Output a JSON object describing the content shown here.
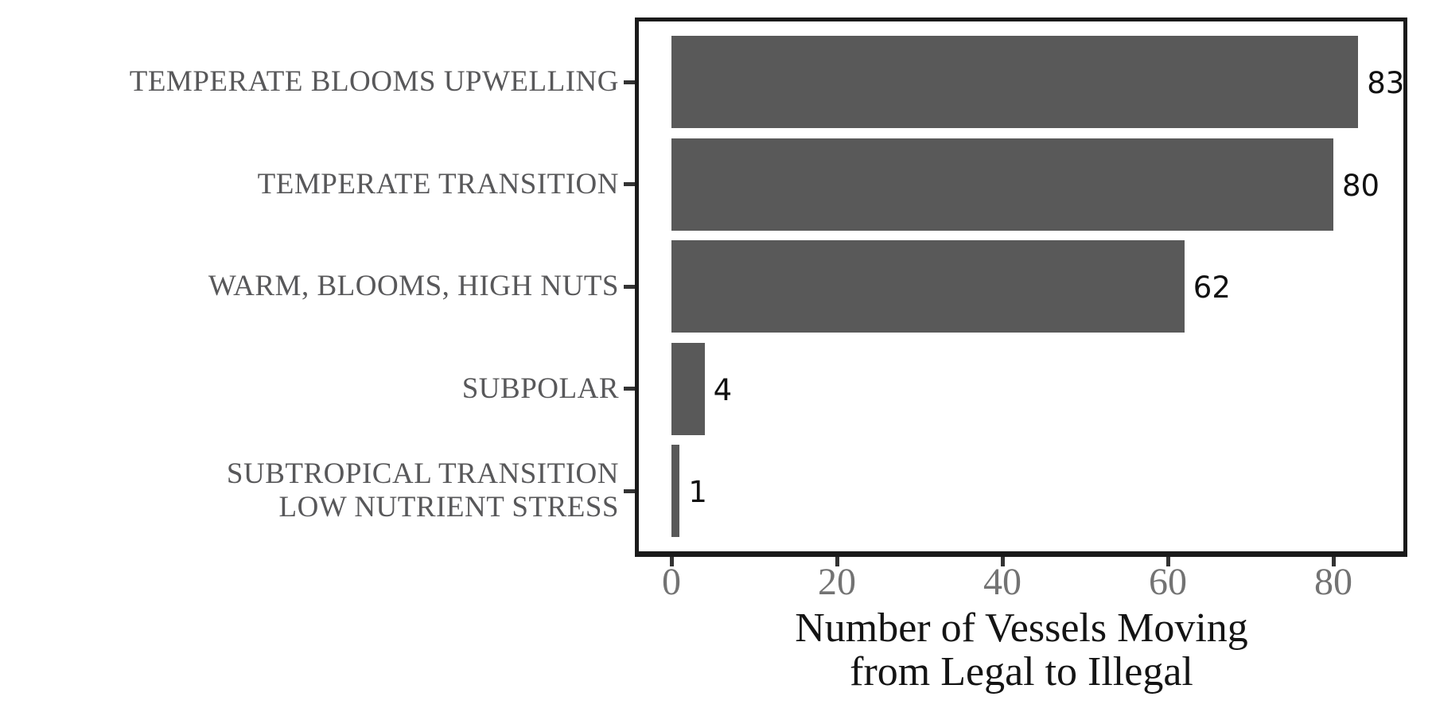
{
  "chart_data": {
    "type": "bar",
    "orientation": "horizontal",
    "title": "",
    "xlabel_lines": [
      "Number of Vessels Moving",
      "from Legal to Illegal"
    ],
    "ylabel": "",
    "categories": [
      "TEMPERATE BLOOMS UPWELLING",
      "TEMPERATE TRANSITION",
      "WARM, BLOOMS, HIGH NUTS",
      "SUBPOLAR",
      "SUBTROPICAL TRANSITION\nLOW NUTRIENT STRESS"
    ],
    "values": [
      83,
      80,
      62,
      4,
      1
    ],
    "bar_value_labels": [
      "83",
      "80",
      "62",
      "4",
      "1"
    ],
    "x_ticks": [
      "0",
      "20",
      "40",
      "60",
      "80"
    ],
    "x_tick_values": [
      0,
      20,
      40,
      60,
      80
    ],
    "xlim": [
      0,
      88
    ],
    "grid": false,
    "legend": false,
    "colors": {
      "bar_fill": "#595959",
      "value_label": "#111111",
      "category_label": "#58585a",
      "x_tick_label": "#737373",
      "tick_mark": "#333333",
      "panel_border": "#1a1a1a",
      "axis_title": "#141414",
      "background": "#ffffff"
    }
  }
}
